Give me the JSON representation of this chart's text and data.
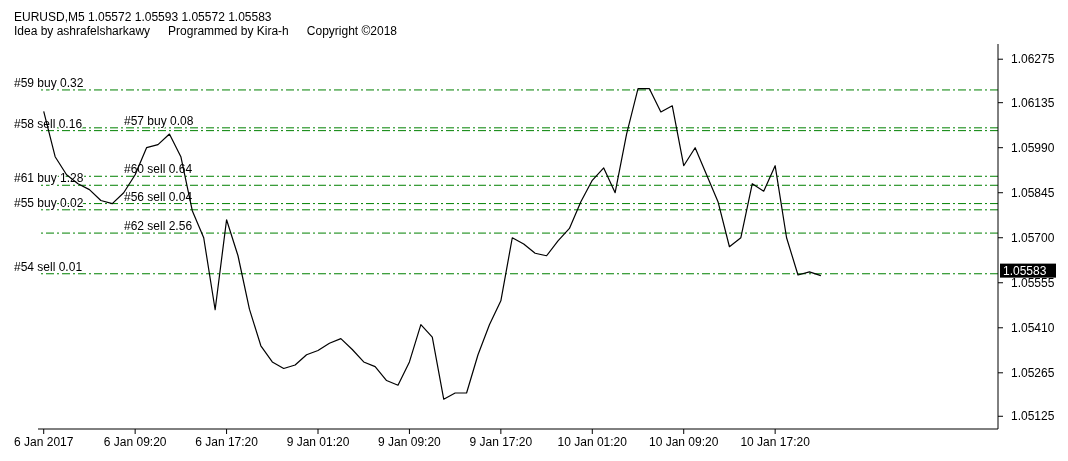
{
  "chart_data": {
    "type": "line",
    "title": "EURUSD,M5  1.05572 1.05593 1.05572 1.05583",
    "annotations": [
      "Idea by ashrafelsharkawy",
      "Programmed by Kira-h",
      "Copyright ©2018",
      "1.05583"
    ],
    "categories": [
      "6 Jan 2017",
      null,
      null,
      null,
      null,
      null,
      null,
      null,
      "6 Jan 09:20",
      null,
      null,
      null,
      null,
      null,
      null,
      null,
      "6 Jan 17:20",
      null,
      null,
      null,
      null,
      null,
      null,
      null,
      "9 Jan 01:20",
      null,
      null,
      null,
      null,
      null,
      null,
      null,
      "9 Jan 09:20",
      null,
      null,
      null,
      null,
      null,
      null,
      null,
      "9 Jan 17:20",
      null,
      null,
      null,
      null,
      null,
      null,
      null,
      "10 Jan 01:20",
      null,
      null,
      null,
      null,
      null,
      null,
      null,
      "10 Jan 09:20",
      null,
      null,
      null,
      null,
      null,
      null,
      null,
      "10 Jan 17:20",
      null,
      null,
      null,
      null,
      null,
      null,
      null,
      null,
      null,
      null,
      null,
      null,
      null,
      null,
      null,
      null,
      null,
      null,
      null
    ],
    "series": [
      {
        "color": "#000000",
        "values": [
          1.06107,
          1.05961,
          1.05903,
          1.05874,
          1.05855,
          1.0582,
          1.0581,
          1.05845,
          1.05903,
          1.0599,
          1.06,
          1.06034,
          1.05961,
          1.05787,
          1.057,
          1.05468,
          1.05758,
          1.05642,
          1.0547,
          1.05352,
          1.053,
          1.05279,
          1.0529,
          1.05323,
          1.05337,
          1.0536,
          1.05375,
          1.0534,
          1.053,
          1.05285,
          1.0524,
          1.05225,
          1.053,
          1.0542,
          1.0538,
          1.0518,
          1.052,
          1.052,
          1.05323,
          1.0542,
          1.05497,
          1.057,
          1.0568,
          1.0565,
          1.05642,
          1.0569,
          1.0573,
          1.05816,
          1.05885,
          1.05925,
          1.05845,
          1.06034,
          1.0618,
          1.0618,
          1.06105,
          1.06125,
          1.05932,
          1.0599,
          1.05903,
          1.05816,
          1.05671,
          1.057,
          1.05874,
          1.0585,
          1.05932,
          1.057,
          1.0558,
          1.0559,
          1.05578,
          null,
          null,
          null,
          null,
          null,
          null,
          null,
          null,
          null,
          null,
          null,
          null,
          null,
          null,
          null
        ]
      }
    ],
    "ylim": [
      1.05084,
      1.06324
    ],
    "yticks": [
      {
        "value": 1.05125,
        "label": "1.05125"
      },
      {
        "value": 1.05265,
        "label": "1.05265"
      },
      {
        "value": 1.0541,
        "label": "1.05410"
      },
      {
        "value": 1.05555,
        "label": "1.05555"
      },
      {
        "value": 1.057,
        "label": "1.05700"
      },
      {
        "value": 1.05845,
        "label": "1.05845"
      },
      {
        "value": 1.0599,
        "label": "1.05990"
      },
      {
        "value": 1.06135,
        "label": "1.06135"
      },
      {
        "value": 1.06275,
        "label": "1.06275"
      }
    ],
    "ref_lines": [
      {
        "axis": "y",
        "value": 1.06176,
        "label": "#59 buy 0.32",
        "color": "#008000",
        "line_style": "dashed"
      },
      {
        "axis": "y",
        "value": 1.06054,
        "label": "#57 buy 0.08",
        "color": "#008000",
        "line_style": "dashed"
      },
      {
        "axis": "y",
        "value": 1.06045,
        "label": "#58 sell 0.16",
        "color": "#008000",
        "line_style": "dashed"
      },
      {
        "axis": "y",
        "value": 1.05898,
        "label": "#60 sell 0.64",
        "color": "#008000",
        "line_style": "dashed"
      },
      {
        "axis": "y",
        "value": 1.05869,
        "label": "#61 buy 1.28",
        "color": "#008000",
        "line_style": "dashed"
      },
      {
        "axis": "y",
        "value": 1.0581,
        "label": "#56 sell 0.04",
        "color": "#008000",
        "line_style": "dashed"
      },
      {
        "axis": "y",
        "value": 1.0579,
        "label": "#55 buy 0.02",
        "color": "#008000",
        "line_style": "dashed"
      },
      {
        "axis": "y",
        "value": 1.05715,
        "label": "#62 sell 2.56",
        "color": "#008000",
        "line_style": "dashed"
      },
      {
        "axis": "y",
        "value": 1.05584,
        "label": "#54 sell 0.01",
        "color": "#008000",
        "line_style": "dashed"
      }
    ],
    "grid": false,
    "legend": false,
    "marker": "none",
    "line_style": "solid"
  }
}
